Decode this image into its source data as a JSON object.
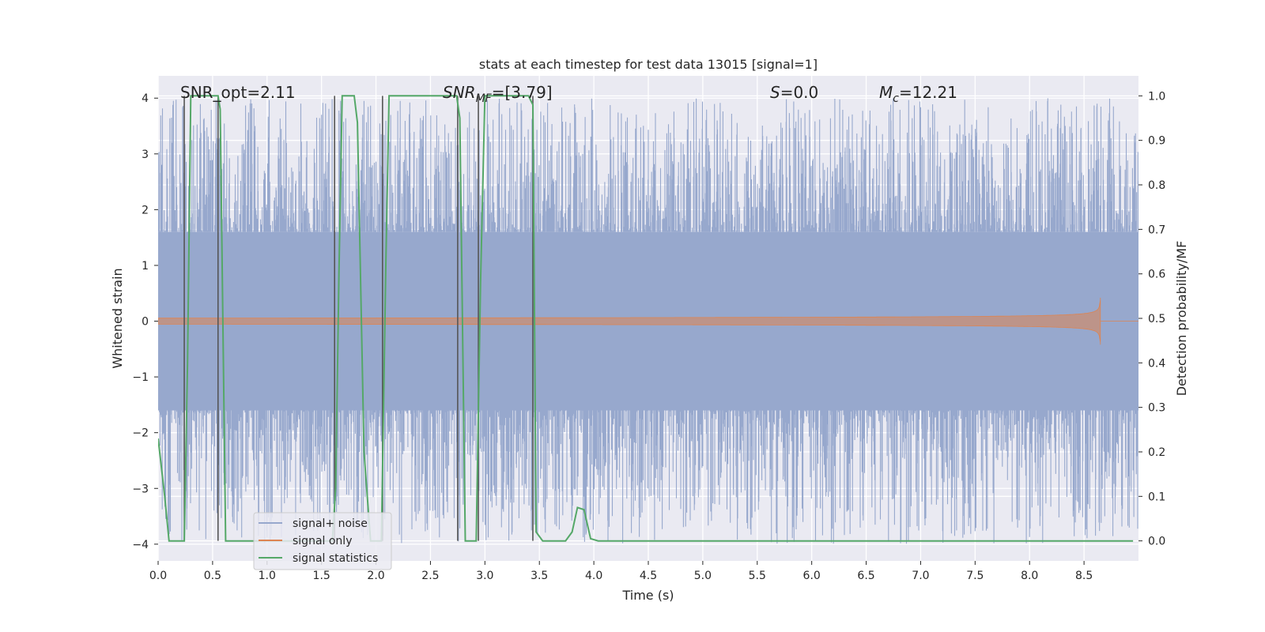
{
  "chart_data": {
    "type": "line",
    "title": "stats at each timestep for test data 13015 [signal=1]",
    "xlabel": "Time (s)",
    "ylabel": "Whitened strain",
    "y2label": "Detection probability/MF",
    "xlim": [
      0.0,
      9.0
    ],
    "ylim": [
      -4.3,
      4.4
    ],
    "y2lim": [
      -0.045,
      1.045
    ],
    "xticks": [
      0.0,
      0.5,
      1.0,
      1.5,
      2.0,
      2.5,
      3.0,
      3.5,
      4.0,
      4.5,
      5.0,
      5.5,
      6.0,
      6.5,
      7.0,
      7.5,
      8.0,
      8.5
    ],
    "xtick_labels": [
      "0.0",
      "0.5",
      "1.0",
      "1.5",
      "2.0",
      "2.5",
      "3.0",
      "3.5",
      "4.0",
      "4.5",
      "5.0",
      "5.5",
      "6.0",
      "6.5",
      "7.0",
      "7.5",
      "8.0",
      "8.5"
    ],
    "yticks": [
      -4,
      -3,
      -2,
      -1,
      0,
      1,
      2,
      3,
      4
    ],
    "ytick_labels": [
      "−4",
      "−3",
      "−2",
      "−1",
      "0",
      "1",
      "2",
      "3",
      "4"
    ],
    "y2ticks": [
      0.0,
      0.1,
      0.2,
      0.3,
      0.4,
      0.5,
      0.6,
      0.7,
      0.8,
      0.9,
      1.0
    ],
    "y2tick_labels": [
      "0.0",
      "0.1",
      "0.2",
      "0.3",
      "0.4",
      "0.5",
      "0.6",
      "0.7",
      "0.8",
      "0.9",
      "1.0"
    ],
    "series": [
      {
        "name": "signal+ noise",
        "color": "#97a8cd",
        "description": "dense whitened strain noise, mostly within ±1.6 with spikes up to about ±4",
        "sample_rate": 1000,
        "typical_band": 1.6,
        "max_abs": 4.0
      },
      {
        "name": "signal only",
        "color": "#dd8452",
        "chirp_end_time": 8.65,
        "chirp_peak_amplitude": 0.42
      },
      {
        "name": "signal statistics",
        "color": "#55a868",
        "axis": "right",
        "x": [
          0.0,
          0.06,
          0.1,
          0.2,
          0.24,
          0.27,
          0.3,
          0.55,
          0.57,
          0.62,
          0.68,
          1.6,
          1.63,
          1.66,
          1.69,
          1.8,
          1.83,
          1.89,
          1.95,
          2.02,
          2.05,
          2.09,
          2.12,
          2.7,
          2.74,
          2.77,
          2.82,
          2.88,
          2.92,
          2.96,
          3.0,
          3.4,
          3.44,
          3.47,
          3.53,
          3.6,
          3.74,
          3.8,
          3.85,
          3.91,
          3.97,
          4.04,
          8.95
        ],
        "values": [
          0.23,
          0.1,
          0.0,
          0.0,
          0.0,
          0.4,
          1.0,
          1.0,
          0.97,
          0.0,
          0.0,
          0.0,
          0.12,
          0.6,
          1.0,
          1.0,
          0.94,
          0.2,
          0.0,
          0.0,
          0.0,
          0.62,
          1.0,
          1.0,
          1.0,
          0.95,
          0.0,
          0.0,
          0.0,
          0.58,
          1.0,
          1.0,
          0.98,
          0.02,
          0.0,
          0.0,
          0.0,
          0.02,
          0.075,
          0.07,
          0.005,
          0.0,
          0.0
        ]
      }
    ],
    "vlines": [
      0.24,
      0.55,
      1.62,
      2.06,
      2.75,
      2.94,
      3.44
    ],
    "vline_color": "#555555",
    "legend": [
      "signal+ noise",
      "signal only",
      "signal statistics"
    ],
    "legend_loc": "lower-left",
    "grid": true,
    "background_color": "#eaeaf2",
    "annotations": {
      "snr_opt": "SNR_opt=2.11",
      "snr_mf_prefix": "SNR",
      "snr_mf_sub": "MF",
      "snr_mf_value": "=[3.79]",
      "s_symbol": "S",
      "s_value": "=0.0",
      "mc_symbol": "M",
      "mc_sub": "c",
      "mc_value": "=12.21"
    }
  }
}
